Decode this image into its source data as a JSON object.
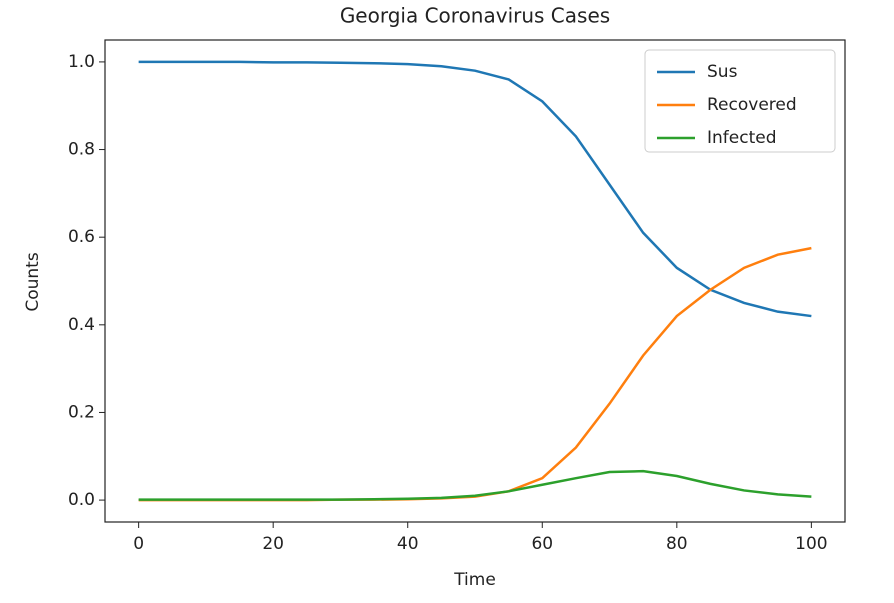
{
  "chart_data": {
    "type": "line",
    "title": "Georgia Coronavirus Cases",
    "xlabel": "Time",
    "ylabel": "Counts",
    "x": [
      0,
      5,
      10,
      15,
      20,
      25,
      30,
      35,
      40,
      45,
      50,
      55,
      60,
      65,
      70,
      75,
      80,
      85,
      90,
      95,
      100
    ],
    "series": [
      {
        "name": "Sus",
        "color": "#1f77b4",
        "values": [
          1.0,
          1.0,
          1.0,
          1.0,
          0.999,
          0.999,
          0.998,
          0.997,
          0.995,
          0.99,
          0.98,
          0.96,
          0.91,
          0.83,
          0.72,
          0.61,
          0.53,
          0.48,
          0.45,
          0.43,
          0.42
        ]
      },
      {
        "name": "Recovered",
        "color": "#ff7f0e",
        "values": [
          0,
          0,
          0,
          0,
          0,
          0,
          0.001,
          0.001,
          0.002,
          0.004,
          0.008,
          0.02,
          0.05,
          0.12,
          0.22,
          0.33,
          0.42,
          0.48,
          0.53,
          0.56,
          0.575
        ]
      },
      {
        "name": "Infected",
        "color": "#2ca02c",
        "values": [
          0.001,
          0.001,
          0.001,
          0.001,
          0.001,
          0.001,
          0.001,
          0.002,
          0.003,
          0.005,
          0.01,
          0.02,
          0.035,
          0.05,
          0.064,
          0.066,
          0.055,
          0.037,
          0.022,
          0.013,
          0.008
        ]
      }
    ],
    "xlim": [
      -5,
      105
    ],
    "xticks": [
      0,
      20,
      40,
      60,
      80,
      100
    ],
    "ylim": [
      -0.05,
      1.05
    ],
    "yticks": [
      {
        "value": 0,
        "label": "0.0"
      },
      0.2,
      0.4,
      0.6,
      0.8,
      {
        "value": 1,
        "label": "1.0"
      }
    ],
    "legend": "upper right"
  }
}
